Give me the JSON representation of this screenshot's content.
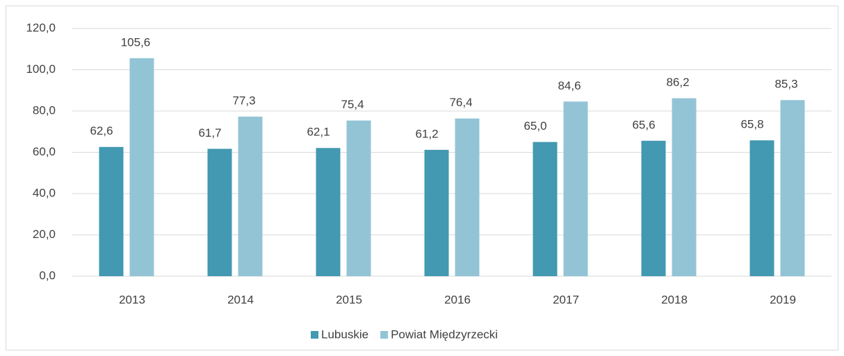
{
  "chart_data": {
    "type": "bar",
    "categories": [
      "2013",
      "2014",
      "2015",
      "2016",
      "2017",
      "2018",
      "2019"
    ],
    "series": [
      {
        "name": "Lubuskie",
        "color": "#4299b1",
        "values": [
          62.6,
          61.7,
          62.1,
          61.2,
          65.0,
          65.6,
          65.8
        ],
        "value_labels": [
          "62,6",
          "61,7",
          "62,1",
          "61,2",
          "65,0",
          "65,6",
          "65,8"
        ]
      },
      {
        "name": "Powiat Międzyrzecki",
        "color": "#93c4d6",
        "values": [
          105.6,
          77.3,
          75.4,
          76.4,
          84.6,
          86.2,
          85.3
        ],
        "value_labels": [
          "105,6",
          "77,3",
          "75,4",
          "76,4",
          "84,6",
          "86,2",
          "85,3"
        ]
      }
    ],
    "ylim": [
      0,
      120
    ],
    "yticks": [
      {
        "value": 0,
        "label": "0,0"
      },
      {
        "value": 20,
        "label": "20,0"
      },
      {
        "value": 40,
        "label": "40,0"
      },
      {
        "value": 60,
        "label": "60,0"
      },
      {
        "value": 80,
        "label": "80,0"
      },
      {
        "value": 100,
        "label": "100,0"
      },
      {
        "value": 120,
        "label": "120,0"
      }
    ],
    "grid": true,
    "legend": "bottom"
  }
}
